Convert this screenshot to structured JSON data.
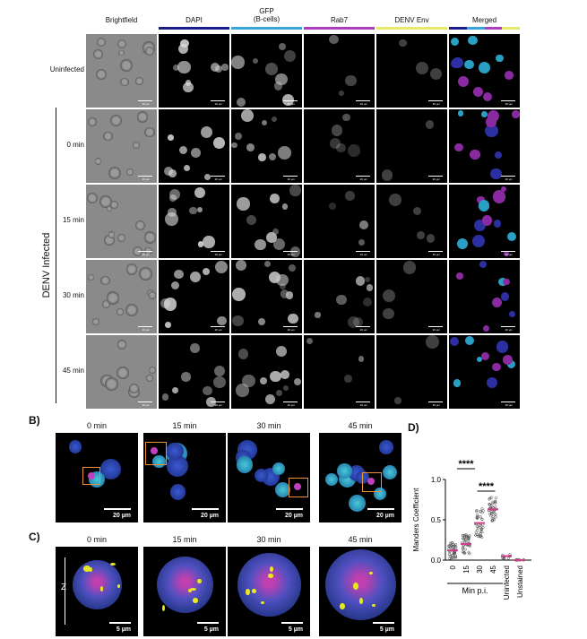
{
  "panel_a": {
    "columns": [
      "Brightfield",
      "DAPI",
      "GFP\n(B-cells)",
      "Rab7",
      "DENV Env",
      "Merged"
    ],
    "column_colors": [
      "#ffffff",
      "#1b1b8a",
      "#3aa5d8",
      "#b03ac0",
      "#e8e86a",
      "multi"
    ],
    "rows": [
      "Uninfected",
      "0 min",
      "15 min",
      "30 min",
      "45 min"
    ],
    "group_label": "DENV Infected",
    "scale_label": "20 µm"
  },
  "panel_b": {
    "label": "B)",
    "timepoints": [
      "0 min",
      "15 min",
      "30 min",
      "45 min"
    ],
    "scale": "20 µm"
  },
  "panel_c": {
    "label": "C)",
    "timepoints": [
      "0 min",
      "15 min",
      "30 min",
      "45 min"
    ],
    "scale": "5 µm",
    "axis": "Z"
  },
  "panel_d": {
    "label": "D)",
    "significance": [
      "****",
      "****"
    ],
    "chart_data": {
      "type": "scatter",
      "ylabel": "Manders Coefficient",
      "xlabel": "Min p.i.",
      "categories": [
        "0",
        "15",
        "30",
        "45",
        "Uninfected",
        "Unstained"
      ],
      "yticks": [
        "0.0",
        "0.5",
        "1.0"
      ],
      "ylim": [
        0,
        1.0
      ],
      "means": [
        0.12,
        0.2,
        0.46,
        0.63,
        0.05,
        0.0
      ],
      "series_color": "#d23c8a",
      "point_color": "#444444"
    }
  }
}
